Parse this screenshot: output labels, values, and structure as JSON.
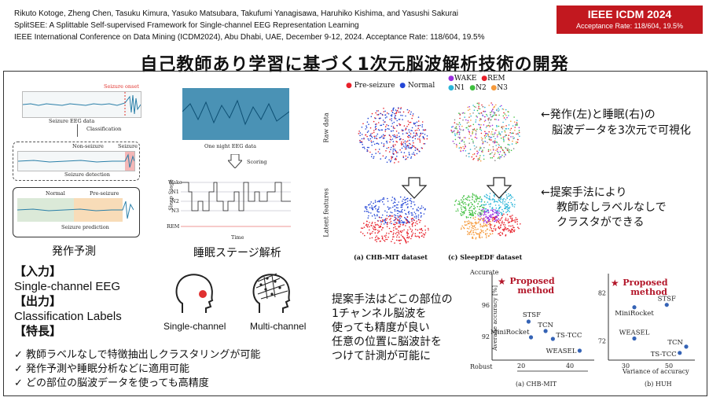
{
  "header": {
    "authors": "Rikuto Kotoge, Zheng Chen, Tasuku Kimura, Yasuko Matsubara, Takufumi Yanagisawa, Haruhiko Kishima, and Yasushi Sakurai",
    "paper_title": "SplitSEE: A Splittable Self-supervised Framework for Single-channel EEG Representation Learning",
    "venue": "IEEE International Conference on Data Mining (ICDM2024), Abu Dhabi, UAE, December 9-12, 2024. Acceptance Rate: 118/604, 19.5%"
  },
  "badge": {
    "title": "IEEE ICDM 2024",
    "subtitle": "Acceptance Rate: 118/604, 19.5%",
    "color": "#c2181f"
  },
  "main_title": "自己教師あり学習に基づく1次元脳波解析技術の開発",
  "seizure_fig": {
    "onset": "Seizure onset",
    "eeg_caption": "Seizure EEG data",
    "classification": "Classification",
    "non_seizure": "Non-seizure",
    "seizure": "Seizure",
    "detection": "Seizure detection",
    "normal": "Normal",
    "pre_seizure": "Pre-seizure",
    "prediction": "Seizure prediction",
    "label": "発作予測"
  },
  "sleep_fig": {
    "caption": "One night EEG data",
    "scoring": "Scoring",
    "y_axis": "Sleep Stage",
    "stages": [
      "Wake",
      "N1",
      "N2",
      "N3",
      "REM"
    ],
    "x_axis": "Time",
    "label": "睡眠ステージ解析"
  },
  "scatter_fig": {
    "legend_a": [
      "Pre-seizure",
      "Normal"
    ],
    "legend_b": [
      "WAKE",
      "REM",
      "N1",
      "N2",
      "N3"
    ],
    "row1": "Raw data",
    "row2": "Latent features",
    "cap_a": "(a) CHB-MIT dataset",
    "cap_b": "(c) SleepEDF dataset",
    "note1_l1": "←発作(左)と睡眠(右)の",
    "note1_l2": "脳波データを3次元で可視化",
    "note2_l1": "←提案手法により",
    "note2_l2": "教師なしラベルなしで",
    "note2_l3": "クラスタができる"
  },
  "io": {
    "input_h": "【入力】",
    "input": "Single-channel EEG",
    "output_h": "【出力】",
    "output": "Classification Labels",
    "feature_h": "【特長】",
    "features": [
      "✓  教師ラベルなしで特徴抽出しクラスタリングが可能",
      "✓  発作予測や睡眠分析などに適用可能",
      "✓  どの部位の脳波データを使っても高精度"
    ]
  },
  "channels": {
    "single": "Single-channel",
    "multi": "Multi-channel"
  },
  "description": [
    "提案手法はどこの部位の",
    "1チャンネル脳波を",
    "使っても精度が良い",
    "任意の位置に脳波計を",
    "つけて計測が可能に"
  ],
  "chart_data": [
    {
      "type": "scatter",
      "title": "(a) CHB-MIT",
      "ylabel": "Average accuracy [%]",
      "top_label": "Accurate",
      "left_label": "Robust",
      "yticks": [
        92,
        96
      ],
      "xticks": [
        20,
        40
      ],
      "proposed": {
        "name": "Proposed method",
        "x": 12,
        "y": 99
      },
      "points": [
        {
          "name": "STSF",
          "x": 23,
          "y": 93.9
        },
        {
          "name": "TCN",
          "x": 30,
          "y": 92.7
        },
        {
          "name": "MiniRocket",
          "x": 24,
          "y": 91.9
        },
        {
          "name": "TS-TCC",
          "x": 33,
          "y": 91.7
        },
        {
          "name": "WEASEL",
          "x": 44,
          "y": 90.2
        }
      ]
    },
    {
      "type": "scatter",
      "title": "(b) HUH",
      "xlabel": "Variance of accuracy",
      "yticks": [
        72,
        82
      ],
      "xticks": [
        30,
        50
      ],
      "proposed": {
        "name": "Proposed method",
        "x": 25,
        "y": 84
      },
      "points": [
        {
          "name": "STSF",
          "x": 49,
          "y": 79.5
        },
        {
          "name": "MiniRocket",
          "x": 34,
          "y": 79
        },
        {
          "name": "WEASEL",
          "x": 34,
          "y": 72.5
        },
        {
          "name": "TCN",
          "x": 58,
          "y": 70.8
        },
        {
          "name": "TS-TCC",
          "x": 55,
          "y": 69.5
        }
      ]
    }
  ],
  "colors": {
    "accent": "#b3172a",
    "eeg": "#2a7fa8",
    "normal": "#2346d6",
    "preseizure": "#e8202a"
  }
}
